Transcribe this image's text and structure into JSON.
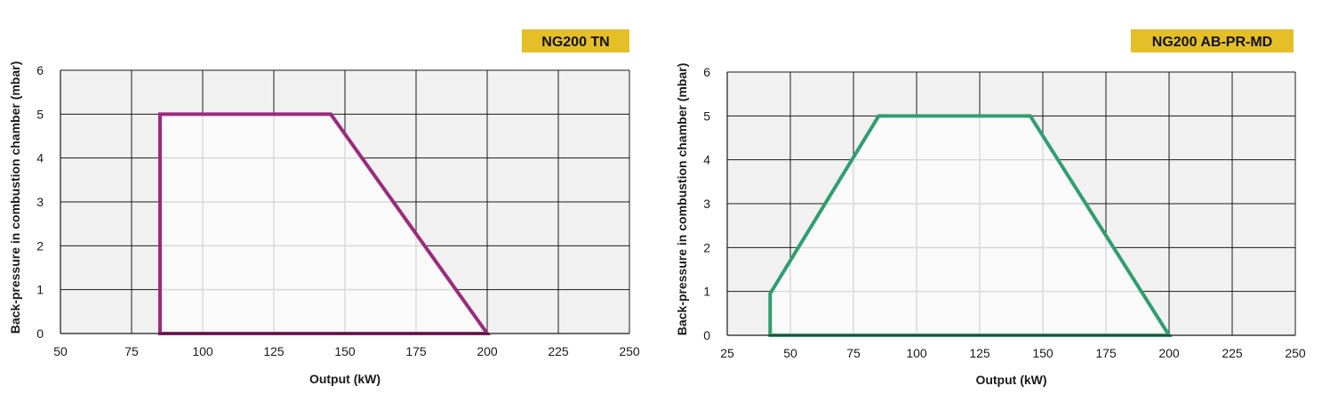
{
  "chart_data": [
    {
      "type": "area",
      "title": "NG200 TN",
      "xlabel": "Output (kW)",
      "ylabel": "Back-pressure in combustion chamber (mbar)",
      "xlim": [
        50,
        250
      ],
      "ylim": [
        0,
        6
      ],
      "xticks": [
        50,
        75,
        100,
        125,
        150,
        175,
        200,
        225,
        250
      ],
      "yticks": [
        0,
        1,
        2,
        3,
        4,
        5,
        6
      ],
      "grid": true,
      "series": [
        {
          "x": [
            85,
            85,
            145,
            200,
            85
          ],
          "y": [
            0,
            5,
            5,
            0,
            0
          ]
        }
      ],
      "color": "#9c2a7c",
      "badge_color": "#e5bf28"
    },
    {
      "type": "area",
      "title": "NG200 AB-PR-MD",
      "xlabel": "Output (kW)",
      "ylabel": "Back-pressure in combustion chamber (mbar)",
      "xlim": [
        25,
        250
      ],
      "ylim": [
        0,
        6
      ],
      "xticks": [
        25,
        50,
        75,
        100,
        125,
        150,
        175,
        200,
        225,
        250
      ],
      "yticks": [
        0,
        1,
        2,
        3,
        4,
        5,
        6
      ],
      "grid": true,
      "series": [
        {
          "x": [
            42,
            42,
            85,
            145,
            200,
            42
          ],
          "y": [
            0,
            0.95,
            5,
            5,
            0,
            0
          ]
        }
      ],
      "color": "#2f9e6e",
      "badge_color": "#e5bf28"
    }
  ]
}
